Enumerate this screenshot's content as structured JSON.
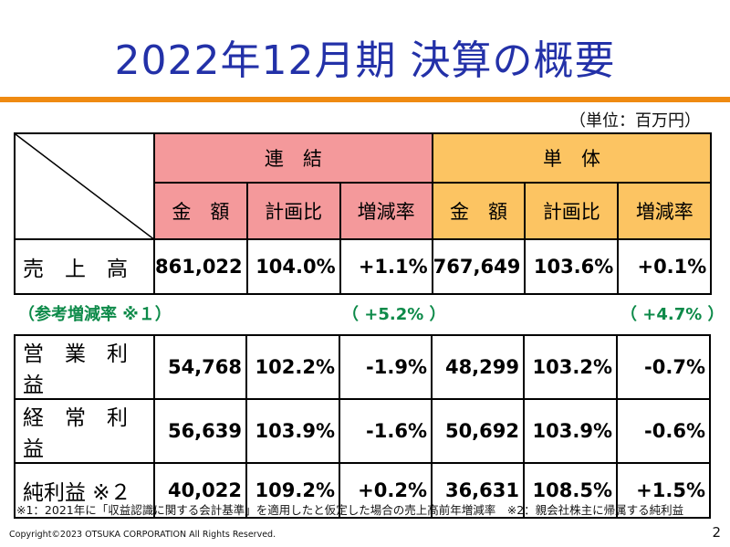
{
  "slide": {
    "title": "2022年12月期 決算の概要",
    "unit": "（単位：百万円）",
    "note": "※1：2021年に「収益認識に関する会計基準」を適用したと仮定した場合の売上高前年増減率　※2：親会社株主に帰属する純利益",
    "copyright": "Copyright©2023 OTSUKA CORPORATION All Rights Reserved.",
    "page_number": "2"
  },
  "table": {
    "group_consolidated": "連　結",
    "group_standalone": "単　体",
    "col_amount": "金　額",
    "col_plan_ratio": "計画比",
    "col_change_rate": "増減率",
    "sales": {
      "label": "売　上　高",
      "values": [
        "861,022",
        "104.0%",
        "+1.1%",
        "767,649",
        "103.6%",
        "+0.1%"
      ]
    },
    "reference": {
      "label": "（参考増減率 ※１）",
      "consolidated": "（ +5.2% ）",
      "standalone": "（ +4.7% ）"
    },
    "rows": [
      {
        "label": "営　業　利　益",
        "values": [
          "54,768",
          "102.2%",
          "-1.9%",
          "48,299",
          "103.2%",
          "-0.7%"
        ]
      },
      {
        "label": "経　常　利　益",
        "values": [
          "56,639",
          "103.9%",
          "-1.6%",
          "50,692",
          "103.9%",
          "-0.6%"
        ]
      },
      {
        "label": "純利益 ※２",
        "values": [
          "40,022",
          "109.2%",
          "+0.2%",
          "36,631",
          "108.5%",
          "+1.5%"
        ]
      }
    ]
  },
  "colors": {
    "title": "#2331a8",
    "accent_rule": "#ef8a12",
    "consolidated_header": "#f4999b",
    "standalone_header": "#fcc462",
    "reference_text": "#0d8a49"
  }
}
